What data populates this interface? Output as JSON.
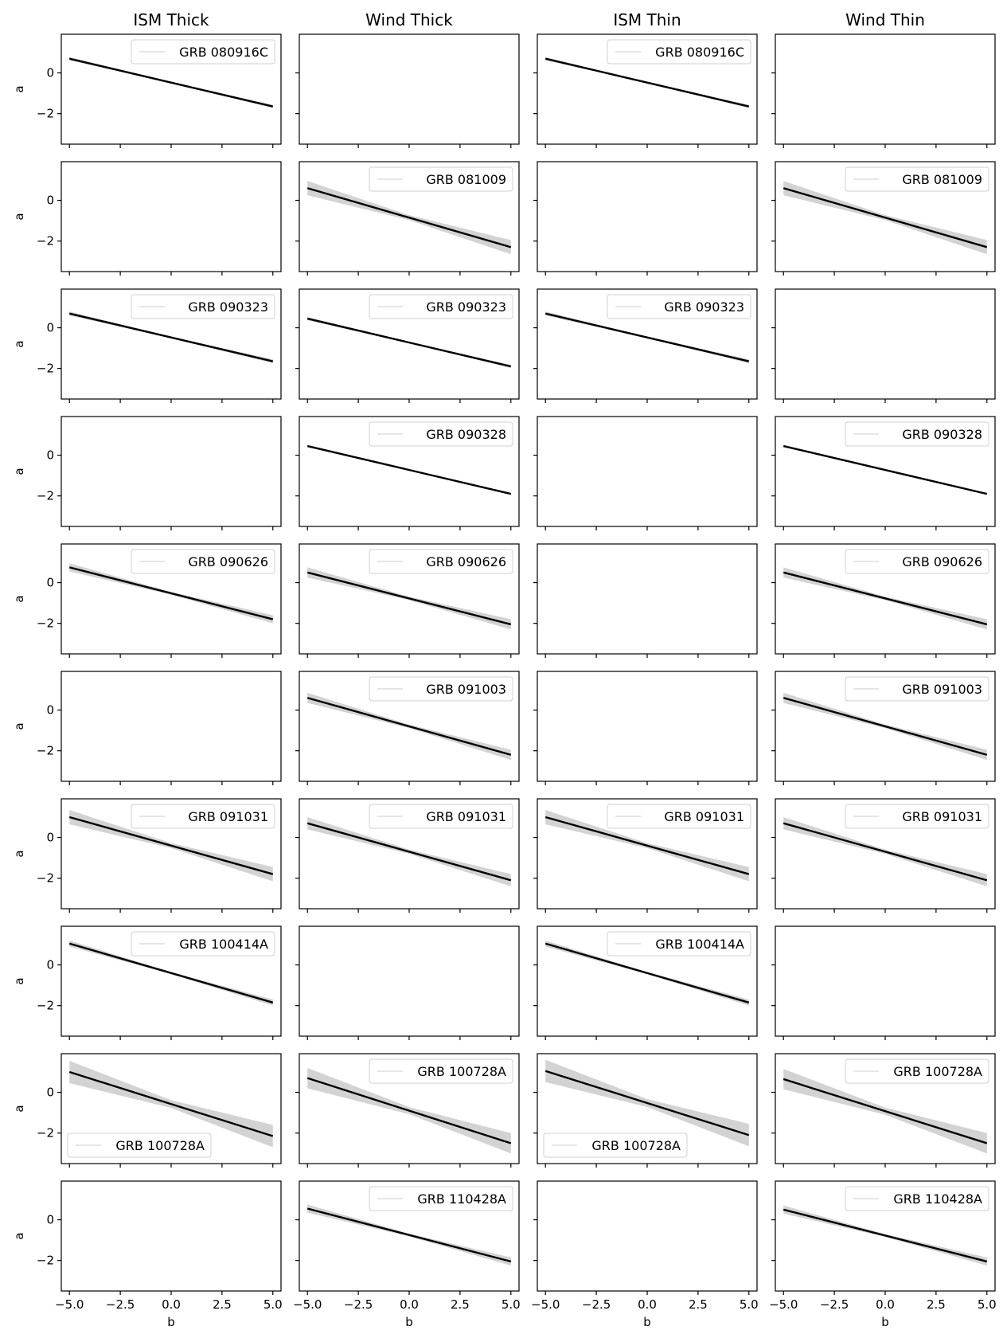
{
  "chart_data": {
    "type": "line",
    "layout": "grid 10 rows x 4 columns, shared axes",
    "column_titles": [
      "ISM Thick",
      "Wind Thick",
      "ISM Thin",
      "Wind Thin"
    ],
    "xlabel": "b",
    "ylabel": "a",
    "xlim": [
      -5.4,
      5.4
    ],
    "ylim": [
      -3.5,
      1.9
    ],
    "xticks": [
      -5.0,
      -2.5,
      0.0,
      2.5,
      5.0
    ],
    "xtick_labels": [
      "−5.0",
      "−2.5",
      "0.0",
      "2.5",
      "5.0"
    ],
    "yticks": [
      0,
      -2
    ],
    "ytick_labels": [
      "0",
      "−2"
    ],
    "grid": false,
    "line_color": "#000000",
    "band_color": "#d3d3d3",
    "panels": [
      [
        {
          "label": "GRB 080916C",
          "legend": "top-right",
          "x": [
            -5,
            5
          ],
          "y": [
            0.7,
            -1.65
          ],
          "band": 0.08
        },
        null,
        {
          "label": "GRB 080916C",
          "legend": "top-right",
          "x": [
            -5,
            5
          ],
          "y": [
            0.7,
            -1.65
          ],
          "band": 0.08
        },
        null
      ],
      [
        null,
        {
          "label": "GRB 081009",
          "legend": "top-right",
          "x": [
            -5,
            5
          ],
          "y": [
            0.6,
            -2.3
          ],
          "band": 0.35
        },
        null,
        {
          "label": "GRB 081009",
          "legend": "top-right",
          "x": [
            -5,
            5
          ],
          "y": [
            0.6,
            -2.3
          ],
          "band": 0.35
        }
      ],
      [
        {
          "label": "GRB 090323",
          "legend": "top-right",
          "x": [
            -5,
            5
          ],
          "y": [
            0.7,
            -1.65
          ],
          "band": 0.1
        },
        {
          "label": "GRB 090323",
          "legend": "top-right",
          "x": [
            -5,
            5
          ],
          "y": [
            0.45,
            -1.9
          ],
          "band": 0.08
        },
        {
          "label": "GRB 090323",
          "legend": "top-right",
          "x": [
            -5,
            5
          ],
          "y": [
            0.7,
            -1.65
          ],
          "band": 0.1
        },
        null
      ],
      [
        null,
        {
          "label": "GRB 090328",
          "legend": "top-right",
          "x": [
            -5,
            5
          ],
          "y": [
            0.45,
            -1.9
          ],
          "band": 0.05
        },
        null,
        {
          "label": "GRB 090328",
          "legend": "top-right",
          "x": [
            -5,
            5
          ],
          "y": [
            0.45,
            -1.9
          ],
          "band": 0.05
        }
      ],
      [
        {
          "label": "GRB 090626",
          "legend": "top-right",
          "x": [
            -5,
            5
          ],
          "y": [
            0.75,
            -1.8
          ],
          "band": 0.2
        },
        {
          "label": "GRB 090626",
          "legend": "top-right",
          "x": [
            -5,
            5
          ],
          "y": [
            0.5,
            -2.05
          ],
          "band": 0.25
        },
        null,
        {
          "label": "GRB 090626",
          "legend": "top-right",
          "x": [
            -5,
            5
          ],
          "y": [
            0.5,
            -2.05
          ],
          "band": 0.25
        }
      ],
      [
        null,
        {
          "label": "GRB 091003",
          "legend": "top-right",
          "x": [
            -5,
            5
          ],
          "y": [
            0.6,
            -2.2
          ],
          "band": 0.25
        },
        null,
        {
          "label": "GRB 091003",
          "legend": "top-right",
          "x": [
            -5,
            5
          ],
          "y": [
            0.6,
            -2.2
          ],
          "band": 0.25
        }
      ],
      [
        {
          "label": "GRB 091031",
          "legend": "top-right",
          "x": [
            -5,
            5
          ],
          "y": [
            1.0,
            -1.8
          ],
          "band": 0.35
        },
        {
          "label": "GRB 091031",
          "legend": "top-right",
          "x": [
            -5,
            5
          ],
          "y": [
            0.7,
            -2.1
          ],
          "band": 0.3
        },
        {
          "label": "GRB 091031",
          "legend": "top-right",
          "x": [
            -5,
            5
          ],
          "y": [
            1.0,
            -1.8
          ],
          "band": 0.35
        },
        {
          "label": "GRB 091031",
          "legend": "top-right",
          "x": [
            -5,
            5
          ],
          "y": [
            0.7,
            -2.1
          ],
          "band": 0.3
        }
      ],
      [
        {
          "label": "GRB 100414A",
          "legend": "top-right",
          "x": [
            -5,
            5
          ],
          "y": [
            1.05,
            -1.85
          ],
          "band": 0.15
        },
        null,
        {
          "label": "GRB 100414A",
          "legend": "top-right",
          "x": [
            -5,
            5
          ],
          "y": [
            1.05,
            -1.85
          ],
          "band": 0.15
        },
        null
      ],
      [
        {
          "label": "GRB 100728A",
          "legend": "bottom-left",
          "x": [
            -5,
            5
          ],
          "y": [
            1.0,
            -2.15
          ],
          "band": 0.55
        },
        {
          "label": "GRB 100728A",
          "legend": "top-right",
          "x": [
            -5,
            5
          ],
          "y": [
            0.7,
            -2.5
          ],
          "band": 0.5
        },
        {
          "label": "GRB 100728A",
          "legend": "bottom-left",
          "x": [
            -5,
            5
          ],
          "y": [
            1.05,
            -2.1
          ],
          "band": 0.55
        },
        {
          "label": "GRB 100728A",
          "legend": "top-right",
          "x": [
            -5,
            5
          ],
          "y": [
            0.65,
            -2.5
          ],
          "band": 0.5
        }
      ],
      [
        null,
        {
          "label": "GRB 110428A",
          "legend": "top-right",
          "x": [
            -5,
            5
          ],
          "y": [
            0.55,
            -2.05
          ],
          "band": 0.2
        },
        null,
        {
          "label": "GRB 110428A",
          "legend": "top-right",
          "x": [
            -5,
            5
          ],
          "y": [
            0.5,
            -2.05
          ],
          "band": 0.2
        }
      ]
    ]
  }
}
